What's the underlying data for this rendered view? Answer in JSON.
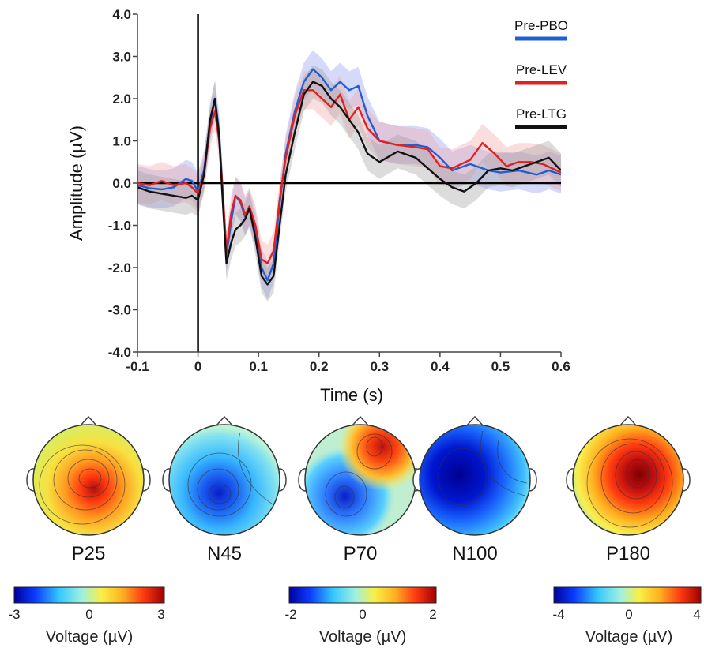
{
  "chart_data": [
    {
      "type": "line",
      "title": "",
      "xlabel": "Time (s)",
      "ylabel": "Amplitude (µV)",
      "xlim": [
        -0.1,
        0.6
      ],
      "ylim": [
        -4.0,
        4.0
      ],
      "x_ticks": [
        "-0.1",
        "0",
        "0.1",
        "0.2",
        "0.3",
        "0.4",
        "0.5",
        "0.6"
      ],
      "y_ticks": [
        "4.0",
        "3.0",
        "2.0",
        "1.0",
        "0.0",
        "-1.0",
        "-2.0",
        "-3.0",
        "-4.0"
      ],
      "legend_position": "top-right",
      "zero_line": true,
      "stimulus_line_x": 0,
      "series": [
        {
          "name": "Pre-PBO",
          "color": "#1f5fd1",
          "band_color": "#8a94f0",
          "band_halfwidth": 0.45,
          "points": [
            [
              -0.1,
              -0.05
            ],
            [
              -0.08,
              -0.12
            ],
            [
              -0.06,
              -0.15
            ],
            [
              -0.04,
              -0.1
            ],
            [
              -0.02,
              0.1
            ],
            [
              -0.01,
              0.05
            ],
            [
              0.0,
              -0.2
            ],
            [
              0.01,
              0.3
            ],
            [
              0.02,
              1.4
            ],
            [
              0.028,
              2.0
            ],
            [
              0.035,
              1.2
            ],
            [
              0.04,
              0.0
            ],
            [
              0.047,
              -1.7
            ],
            [
              0.055,
              -0.9
            ],
            [
              0.062,
              -0.3
            ],
            [
              0.07,
              -0.45
            ],
            [
              0.078,
              -0.8
            ],
            [
              0.085,
              -0.6
            ],
            [
              0.095,
              -1.1
            ],
            [
              0.105,
              -2.0
            ],
            [
              0.115,
              -2.3
            ],
            [
              0.125,
              -1.9
            ],
            [
              0.135,
              -0.5
            ],
            [
              0.145,
              0.7
            ],
            [
              0.16,
              1.7
            ],
            [
              0.175,
              2.4
            ],
            [
              0.19,
              2.7
            ],
            [
              0.205,
              2.5
            ],
            [
              0.22,
              2.2
            ],
            [
              0.235,
              2.4
            ],
            [
              0.25,
              2.2
            ],
            [
              0.265,
              2.3
            ],
            [
              0.28,
              1.6
            ],
            [
              0.3,
              1.0
            ],
            [
              0.33,
              0.9
            ],
            [
              0.36,
              0.9
            ],
            [
              0.38,
              0.85
            ],
            [
              0.4,
              0.6
            ],
            [
              0.42,
              0.3
            ],
            [
              0.45,
              0.45
            ],
            [
              0.48,
              0.3
            ],
            [
              0.5,
              0.25
            ],
            [
              0.53,
              0.3
            ],
            [
              0.56,
              0.2
            ],
            [
              0.58,
              0.3
            ],
            [
              0.6,
              0.2
            ]
          ]
        },
        {
          "name": "Pre-LEV",
          "color": "#e32020",
          "band_color": "#f0a0a0",
          "band_halfwidth": 0.45,
          "points": [
            [
              -0.1,
              0.0
            ],
            [
              -0.08,
              -0.05
            ],
            [
              -0.06,
              0.05
            ],
            [
              -0.04,
              -0.05
            ],
            [
              -0.02,
              0.0
            ],
            [
              -0.01,
              -0.1
            ],
            [
              0.0,
              -0.25
            ],
            [
              0.01,
              0.2
            ],
            [
              0.02,
              1.3
            ],
            [
              0.028,
              1.7
            ],
            [
              0.035,
              1.0
            ],
            [
              0.04,
              0.0
            ],
            [
              0.047,
              -1.6
            ],
            [
              0.055,
              -0.7
            ],
            [
              0.062,
              -0.3
            ],
            [
              0.07,
              -0.4
            ],
            [
              0.078,
              -0.75
            ],
            [
              0.085,
              -0.55
            ],
            [
              0.095,
              -1.0
            ],
            [
              0.105,
              -1.8
            ],
            [
              0.115,
              -1.9
            ],
            [
              0.125,
              -1.6
            ],
            [
              0.135,
              -0.4
            ],
            [
              0.145,
              0.6
            ],
            [
              0.16,
              1.6
            ],
            [
              0.175,
              2.2
            ],
            [
              0.19,
              2.2
            ],
            [
              0.205,
              2.0
            ],
            [
              0.22,
              1.8
            ],
            [
              0.235,
              2.1
            ],
            [
              0.25,
              1.5
            ],
            [
              0.265,
              1.8
            ],
            [
              0.28,
              1.3
            ],
            [
              0.3,
              1.0
            ],
            [
              0.33,
              0.9
            ],
            [
              0.36,
              0.85
            ],
            [
              0.38,
              0.8
            ],
            [
              0.4,
              0.4
            ],
            [
              0.42,
              0.35
            ],
            [
              0.45,
              0.55
            ],
            [
              0.47,
              0.95
            ],
            [
              0.49,
              0.7
            ],
            [
              0.51,
              0.4
            ],
            [
              0.53,
              0.5
            ],
            [
              0.55,
              0.5
            ],
            [
              0.57,
              0.45
            ],
            [
              0.6,
              0.25
            ]
          ]
        },
        {
          "name": "Pre-LTG",
          "color": "#111111",
          "band_color": "#9a9a9a",
          "band_halfwidth": 0.4,
          "points": [
            [
              -0.1,
              -0.1
            ],
            [
              -0.08,
              -0.2
            ],
            [
              -0.06,
              -0.25
            ],
            [
              -0.04,
              -0.3
            ],
            [
              -0.02,
              -0.35
            ],
            [
              -0.01,
              -0.3
            ],
            [
              0.0,
              -0.4
            ],
            [
              0.01,
              0.2
            ],
            [
              0.02,
              1.5
            ],
            [
              0.028,
              2.0
            ],
            [
              0.035,
              1.1
            ],
            [
              0.04,
              -0.2
            ],
            [
              0.047,
              -1.9
            ],
            [
              0.055,
              -1.4
            ],
            [
              0.062,
              -1.1
            ],
            [
              0.07,
              -1.0
            ],
            [
              0.078,
              -0.85
            ],
            [
              0.085,
              -0.6
            ],
            [
              0.095,
              -1.3
            ],
            [
              0.105,
              -2.2
            ],
            [
              0.115,
              -2.4
            ],
            [
              0.125,
              -2.2
            ],
            [
              0.135,
              -1.0
            ],
            [
              0.145,
              0.2
            ],
            [
              0.16,
              1.2
            ],
            [
              0.175,
              2.1
            ],
            [
              0.19,
              2.4
            ],
            [
              0.205,
              2.3
            ],
            [
              0.22,
              2.0
            ],
            [
              0.235,
              1.8
            ],
            [
              0.25,
              1.5
            ],
            [
              0.265,
              1.2
            ],
            [
              0.28,
              0.7
            ],
            [
              0.3,
              0.5
            ],
            [
              0.33,
              0.75
            ],
            [
              0.36,
              0.6
            ],
            [
              0.38,
              0.35
            ],
            [
              0.4,
              0.1
            ],
            [
              0.42,
              -0.1
            ],
            [
              0.44,
              -0.2
            ],
            [
              0.46,
              0.0
            ],
            [
              0.48,
              0.3
            ],
            [
              0.5,
              0.35
            ],
            [
              0.52,
              0.3
            ],
            [
              0.55,
              0.45
            ],
            [
              0.58,
              0.6
            ],
            [
              0.6,
              0.3
            ]
          ]
        }
      ]
    },
    {
      "type": "heatmap",
      "topomaps": [
        {
          "label": "P25"
        },
        {
          "label": "N45"
        },
        {
          "label": "P70"
        },
        {
          "label": "N100"
        },
        {
          "label": "P180"
        }
      ]
    },
    {
      "type": "colorbar",
      "colorbars": [
        {
          "title": "Voltage (µV)",
          "ticks": [
            "-3",
            "0",
            "3"
          ],
          "range": [
            -3,
            3
          ]
        },
        {
          "title": "Voltage (µV)",
          "ticks": [
            "-2",
            "0",
            "2"
          ],
          "range": [
            -2,
            2
          ]
        },
        {
          "title": "Voltage (µV)",
          "ticks": [
            "-4",
            "0",
            "4"
          ],
          "range": [
            -4,
            4
          ]
        }
      ]
    }
  ]
}
